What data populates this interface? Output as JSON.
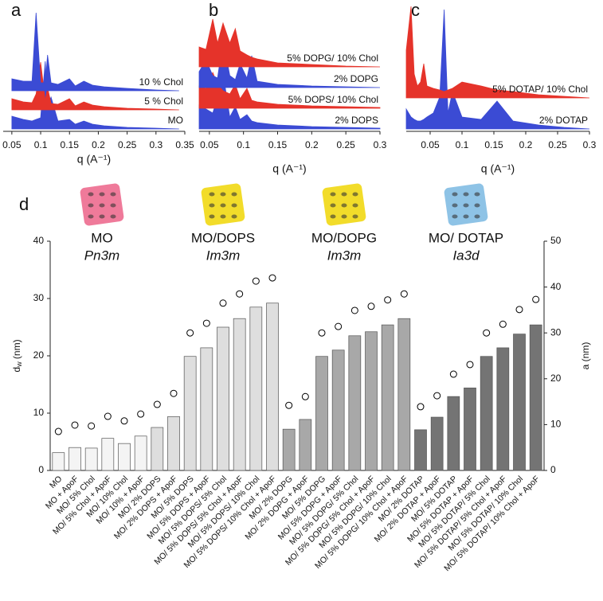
{
  "chart_data": [
    {
      "type": "area",
      "panel": "a",
      "xlabel": "q (A⁻¹)",
      "xlim": [
        0.035,
        0.35
      ],
      "xticks": [
        0.05,
        0.1,
        0.15,
        0.2,
        0.25,
        0.3,
        0.35
      ],
      "ylim": [
        0,
        100
      ],
      "x": [
        0.05,
        0.07,
        0.085,
        0.092,
        0.1,
        0.108,
        0.112,
        0.118,
        0.13,
        0.15,
        0.16,
        0.175,
        0.19,
        0.21,
        0.25,
        0.3,
        0.34
      ],
      "series": [
        {
          "name": "MO",
          "color": "#3b4bd4",
          "values": [
            16,
            12,
            10,
            12,
            14,
            85,
            30,
            40,
            10,
            12,
            6,
            10,
            6,
            4,
            2,
            1,
            0
          ]
        },
        {
          "name": "5 % Chol",
          "color": "#e5332a",
          "values": [
            14,
            10,
            9,
            20,
            60,
            12,
            28,
            8,
            7,
            14,
            5,
            10,
            6,
            4,
            2,
            1,
            0
          ]
        },
        {
          "name": "10 % Chol",
          "color": "#3b4bd4",
          "values": [
            15,
            12,
            12,
            98,
            10,
            10,
            45,
            10,
            8,
            15,
            6,
            12,
            7,
            5,
            3,
            1,
            0
          ]
        }
      ]
    },
    {
      "type": "area",
      "panel": "b",
      "xlabel": "q (A⁻¹)",
      "xlim": [
        0.035,
        0.3
      ],
      "xticks": [
        0.05,
        0.1,
        0.15,
        0.2,
        0.25,
        0.3
      ],
      "ylim": [
        0,
        100
      ],
      "x": [
        0.035,
        0.045,
        0.055,
        0.062,
        0.07,
        0.08,
        0.088,
        0.095,
        0.105,
        0.112,
        0.12,
        0.15,
        0.2,
        0.25,
        0.3
      ],
      "series": [
        {
          "name": "2% DOPS",
          "color": "#3b4bd4",
          "values": [
            30,
            25,
            20,
            40,
            70,
            15,
            28,
            12,
            18,
            10,
            8,
            5,
            3,
            2,
            1
          ]
        },
        {
          "name": "5% DOPS/ 10% Chol",
          "color": "#e5332a",
          "values": [
            28,
            25,
            45,
            30,
            22,
            18,
            30,
            12,
            25,
            10,
            8,
            5,
            3,
            2,
            1
          ]
        },
        {
          "name": "2% DOPG",
          "color": "#3b4bd4",
          "values": [
            20,
            35,
            15,
            12,
            60,
            15,
            10,
            30,
            12,
            40,
            8,
            4,
            2,
            1,
            0
          ]
        },
        {
          "name": "5% DOPG/ 10% Chol",
          "color": "#e5332a",
          "values": [
            25,
            22,
            60,
            30,
            55,
            30,
            48,
            20,
            15,
            12,
            10,
            5,
            3,
            1,
            0
          ]
        }
      ]
    },
    {
      "type": "area",
      "panel": "c",
      "xlabel": "q (A⁻¹)",
      "xlim": [
        0.0125,
        0.3
      ],
      "xticks": [
        0.05,
        0.1,
        0.15,
        0.2,
        0.25,
        0.3
      ],
      "ylim": [
        0,
        160
      ],
      "x": [
        0.0125,
        0.02,
        0.025,
        0.03,
        0.035,
        0.04,
        0.045,
        0.055,
        0.065,
        0.072,
        0.078,
        0.085,
        0.1,
        0.13,
        0.155,
        0.18,
        0.22,
        0.26,
        0.3
      ],
      "series": [
        {
          "name": "2% DOTAP",
          "color": "#3b4bd4",
          "values": [
            25,
            15,
            12,
            10,
            10,
            12,
            15,
            20,
            40,
            150,
            20,
            47,
            15,
            12,
            35,
            10,
            5,
            2,
            0
          ]
        },
        {
          "name": "5% DOTAP/ 10% Chol",
          "color": "#e5332a",
          "values": [
            60,
            115,
            30,
            15,
            20,
            43,
            15,
            12,
            10,
            8,
            10,
            12,
            20,
            15,
            10,
            8,
            4,
            2,
            0
          ]
        }
      ]
    },
    {
      "type": "bar",
      "panel": "d",
      "ylabel": {
        "symbol": "d",
        "subscript": "w",
        "unit": " (nm)"
      },
      "y2label": "a (nm)",
      "structures": [
        {
          "lipid": "MO",
          "phase": "Pn3m",
          "color": "#ef7a9a"
        },
        {
          "lipid": "MO/DOPS",
          "phase": "Im3m",
          "color": "#f2dc2a"
        },
        {
          "lipid": "MO/DOPG",
          "phase": "Im3m",
          "color": "#f2dc2a"
        },
        {
          "lipid": "MO/ DOTAP",
          "phase": "Ia3d",
          "color": "#8ec3e6"
        }
      ],
      "categories": [
        "MO",
        "MO + ApoF",
        "MO/ 5% Chol",
        "MO/ 5% Chol + ApoF",
        "MO/ 10% Chol",
        "MO/ 10% + ApoF",
        "MO/ 2% DOPS",
        "MO/ 2% DOPS + ApoF",
        "MO/ 5% DOPS",
        "MO/ 5% DOPS + ApoF",
        "MO/ 5% DOPS/ 5% Chol",
        "MO/ 5% DOPS/ 5% Chol + ApoF",
        "MO/ 5% DOPS/ 10% Chol",
        "MO/ 5% DOPS/ 10% Chol + ApoF",
        "MO/ 2% DOPG",
        "MO/ 2% DOPG + ApoF",
        "MO/ 5% DOPG",
        "MO/ 5% DOPG + ApoF",
        "MO/ 5% DOPG/ 5% Chol",
        "MO/ 5% DOPG/ 5% Chol + ApoF",
        "MO/ 5% DOPG/ 10% Chol",
        "MO/ 5% DOPG/ 10% Chol + ApoF",
        "MO/ 2% DOTAP",
        "MO/ 2% DOTAP + ApoF",
        "MO/ 5% DOTAP",
        "MO/ 5% DOTAP + ApoF",
        "MO/ 5% DOTAP/ 5% Chol",
        "MO/ 5% DOTAP/ 5% Chol + ApoF",
        "MO/ 5% DOTAP/ 10% Chol",
        "MO/ 5% DOTAP/ 10% Chol + ApoF"
      ],
      "ylim": [
        0,
        40
      ],
      "yticks": [
        0,
        10,
        20,
        30,
        40
      ],
      "y2lim": [
        0,
        50
      ],
      "y2ticks": [
        0,
        10,
        20,
        30,
        40,
        50
      ],
      "series": [
        {
          "values": [
            3.1,
            4.0,
            3.9,
            5.6,
            4.7,
            6.0,
            7.5,
            9.4,
            19.9,
            21.4,
            25.0,
            26.5,
            28.5,
            29.2,
            7.2,
            8.9,
            19.9,
            21.0,
            23.5,
            24.2,
            25.4,
            26.5,
            7.1,
            9.3,
            12.9,
            14.4,
            19.9,
            21.4,
            23.8,
            25.4
          ],
          "colors": [
            "#f4f4f4",
            "#f4f4f4",
            "#f4f4f4",
            "#f4f4f4",
            "#f4f4f4",
            "#f4f4f4",
            "#dedede",
            "#dedede",
            "#dedede",
            "#dedede",
            "#dedede",
            "#dedede",
            "#dedede",
            "#dedede",
            "#a8a8a8",
            "#a8a8a8",
            "#a8a8a8",
            "#a8a8a8",
            "#a8a8a8",
            "#a8a8a8",
            "#a8a8a8",
            "#a8a8a8",
            "#747474",
            "#747474",
            "#747474",
            "#747474",
            "#747474",
            "#747474",
            "#747474",
            "#747474"
          ]
        },
        {
          "axis": "y2",
          "marker": "circle",
          "color": "#000000",
          "values": [
            8.5,
            9.9,
            9.7,
            11.8,
            10.8,
            12.3,
            14.4,
            16.8,
            30.0,
            32.1,
            36.5,
            38.5,
            41.3,
            42.0,
            14.2,
            16.1,
            30.0,
            31.4,
            34.9,
            35.8,
            37.2,
            38.5,
            13.9,
            16.3,
            21.0,
            23.1,
            30.0,
            31.9,
            35.1,
            37.3
          ]
        }
      ]
    }
  ]
}
